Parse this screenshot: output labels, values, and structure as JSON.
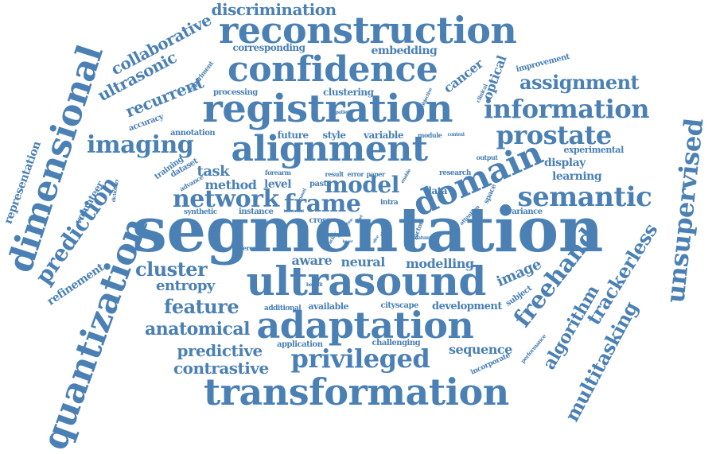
{
  "cloud": {
    "color": "#4a80b4",
    "words": [
      "segmentation",
      "ultrasound",
      "registration",
      "reconstruction",
      "transformation",
      "adaptation",
      "confidence",
      "alignment",
      "quantization",
      "dimensional",
      "domain",
      "semantic",
      "unsupervised",
      "freehand",
      "prostate",
      "information",
      "privileged",
      "imaging",
      "network",
      "frame",
      "model",
      "prediction",
      "trackerless",
      "multitasking",
      "algorithm",
      "assignment",
      "discrimination",
      "collaborative",
      "ultrasonic",
      "recurrent",
      "cluster",
      "feature",
      "anatomical",
      "predictive",
      "contrastive",
      "neural",
      "aware",
      "entropy",
      "image",
      "cancer",
      "optical",
      "corresponding",
      "embedding",
      "clustering",
      "representation",
      "refinement",
      "volunteer",
      "sequence",
      "learning",
      "display",
      "experimental",
      "improvement",
      "task",
      "method",
      "level",
      "data",
      "past",
      "future",
      "style",
      "variable",
      "module",
      "context",
      "research",
      "output",
      "training",
      "dataset",
      "annotation",
      "processing",
      "experiment",
      "accuracy",
      "advance",
      "synthetic",
      "instance",
      "different",
      "forearm",
      "result",
      "error",
      "paper",
      "enable",
      "intra",
      "cross",
      "modelling",
      "development",
      "subject",
      "available",
      "additional",
      "cityscape",
      "challenging",
      "application",
      "incorporate",
      "performance",
      "benefit",
      "variance",
      "space",
      "attention",
      "patient",
      "objective",
      "clinical",
      "dictionary",
      "novel",
      "volume",
      "handworld",
      "target",
      "factor",
      "datum",
      "lower",
      "tracker",
      "pixel",
      "fuse",
      "label",
      "noise",
      "slice"
    ]
  }
}
